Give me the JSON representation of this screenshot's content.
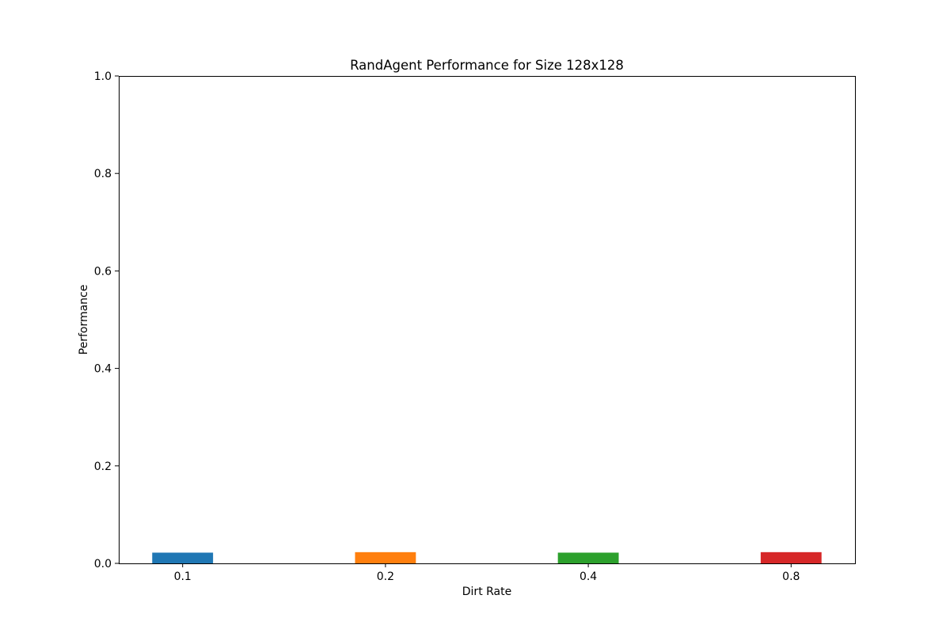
{
  "chart_data": {
    "type": "bar",
    "title": "RandAgent Performance for Size 128x128",
    "xlabel": "Dirt Rate",
    "ylabel": "Performance",
    "categories": [
      "0.1",
      "0.2",
      "0.4",
      "0.8"
    ],
    "values": [
      0.022,
      0.023,
      0.022,
      0.023
    ],
    "colors": [
      "#1f77b4",
      "#ff7f0e",
      "#2ca02c",
      "#d62728"
    ],
    "ylim": [
      0,
      1.0
    ],
    "yticks": [
      0.0,
      0.2,
      0.4,
      0.6,
      0.8,
      1.0
    ],
    "ytick_labels": [
      "0.0",
      "0.2",
      "0.4",
      "0.6",
      "0.8",
      "1.0"
    ],
    "grid": false,
    "legend": "none"
  }
}
